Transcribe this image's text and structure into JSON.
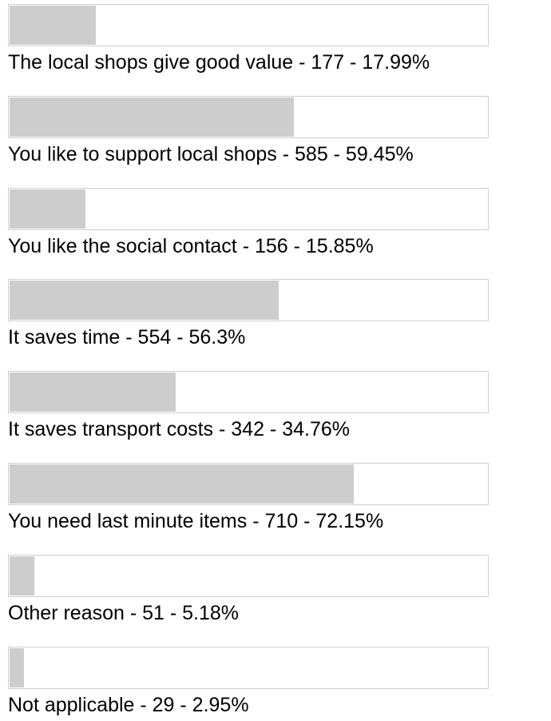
{
  "poll": {
    "options": [
      {
        "label": "The local shops give good value - 177 - 17.99%",
        "percent": 17.99
      },
      {
        "label": "You like to support local shops - 585 - 59.45%",
        "percent": 59.45
      },
      {
        "label": "You like the social contact - 156 - 15.85%",
        "percent": 15.85
      },
      {
        "label": "It saves time - 554 - 56.3%",
        "percent": 56.3
      },
      {
        "label": "It saves transport costs - 342 - 34.76%",
        "percent": 34.76
      },
      {
        "label": "You need last minute items - 710 - 72.15%",
        "percent": 72.15
      },
      {
        "label": "Other reason - 51 - 5.18%",
        "percent": 5.18
      },
      {
        "label": "Not applicable - 29 - 2.95%",
        "percent": 2.95
      }
    ]
  }
}
